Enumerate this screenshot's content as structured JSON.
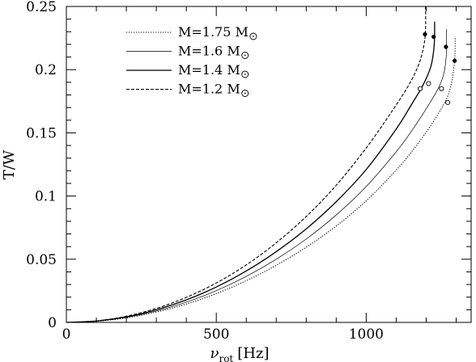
{
  "chart_data": {
    "type": "line",
    "xlabel": {
      "symbol": "ν",
      "subscript": "rot",
      "unit": "[Hz]"
    },
    "ylabel": "T/W",
    "xlim": [
      0,
      1350
    ],
    "ylim": [
      0,
      0.25
    ],
    "x_ticks": [
      0,
      500,
      1000
    ],
    "y_ticks": [
      0,
      0.05,
      0.1,
      0.15,
      0.2,
      0.25
    ],
    "grid": false,
    "legend_position": "top-left",
    "series": [
      {
        "name": "M=1.75 M⊙",
        "label_text": "M=1.75 M",
        "dash": "dotted",
        "points": [
          [
            0,
            0
          ],
          [
            100,
            0.0009
          ],
          [
            200,
            0.0036
          ],
          [
            300,
            0.0082
          ],
          [
            400,
            0.0145
          ],
          [
            500,
            0.0228
          ],
          [
            600,
            0.033
          ],
          [
            700,
            0.0452
          ],
          [
            800,
            0.0595
          ],
          [
            900,
            0.0763
          ],
          [
            1000,
            0.0962
          ],
          [
            1100,
            0.1205
          ],
          [
            1150,
            0.1345
          ],
          [
            1200,
            0.1505
          ],
          [
            1240,
            0.165
          ],
          [
            1270,
            0.178
          ],
          [
            1285,
            0.19
          ],
          [
            1292,
            0.201
          ],
          [
            1296,
            0.212
          ],
          [
            1297,
            0.226
          ]
        ],
        "open_marker": [
          1272,
          0.174
        ],
        "filled_marker": [
          1295,
          0.207
        ]
      },
      {
        "name": "M=1.6 M⊙",
        "label_text": "M=1.6 M",
        "dash": "thin",
        "points": [
          [
            0,
            0
          ],
          [
            100,
            0.001
          ],
          [
            200,
            0.004
          ],
          [
            300,
            0.009
          ],
          [
            400,
            0.016
          ],
          [
            500,
            0.0251
          ],
          [
            600,
            0.0364
          ],
          [
            700,
            0.05
          ],
          [
            800,
            0.066
          ],
          [
            900,
            0.085
          ],
          [
            1000,
            0.1075
          ],
          [
            1100,
            0.135
          ],
          [
            1150,
            0.151
          ],
          [
            1200,
            0.169
          ],
          [
            1240,
            0.185
          ],
          [
            1258,
            0.196
          ],
          [
            1266,
            0.208
          ],
          [
            1268,
            0.22
          ],
          [
            1268,
            0.232
          ]
        ],
        "open_marker": [
          1251,
          0.185
        ],
        "filled_marker": [
          1266,
          0.218
        ]
      },
      {
        "name": "M=1.4 M⊙",
        "label_text": "M=1.4 M",
        "dash": "solid",
        "points": [
          [
            0,
            0
          ],
          [
            100,
            0.0011
          ],
          [
            200,
            0.0044
          ],
          [
            300,
            0.01
          ],
          [
            400,
            0.0178
          ],
          [
            500,
            0.028
          ],
          [
            600,
            0.0407
          ],
          [
            700,
            0.056
          ],
          [
            800,
            0.074
          ],
          [
            900,
            0.0955
          ],
          [
            1000,
            0.121
          ],
          [
            1100,
            0.153
          ],
          [
            1150,
            0.172
          ],
          [
            1190,
            0.188
          ],
          [
            1215,
            0.202
          ],
          [
            1225,
            0.215
          ],
          [
            1228,
            0.226
          ],
          [
            1228,
            0.238
          ]
        ],
        "open_marker": [
          1208,
          0.189
        ],
        "filled_marker": [
          1225,
          0.226
        ]
      },
      {
        "name": "M=1.2 M⊙",
        "label_text": "M=1.2 M",
        "dash": "dashed",
        "points": [
          [
            0,
            0
          ],
          [
            100,
            0.0012
          ],
          [
            200,
            0.0049
          ],
          [
            300,
            0.0111
          ],
          [
            400,
            0.0198
          ],
          [
            500,
            0.0312
          ],
          [
            600,
            0.0455
          ],
          [
            700,
            0.063
          ],
          [
            800,
            0.0838
          ],
          [
            900,
            0.1085
          ],
          [
            1000,
            0.138
          ],
          [
            1080,
            0.165
          ],
          [
            1140,
            0.187
          ],
          [
            1175,
            0.204
          ],
          [
            1193,
            0.22
          ],
          [
            1198,
            0.233
          ],
          [
            1198,
            0.25
          ]
        ],
        "open_marker": [
          1180,
          0.185
        ],
        "filled_marker": [
          1196,
          0.228
        ]
      }
    ]
  }
}
